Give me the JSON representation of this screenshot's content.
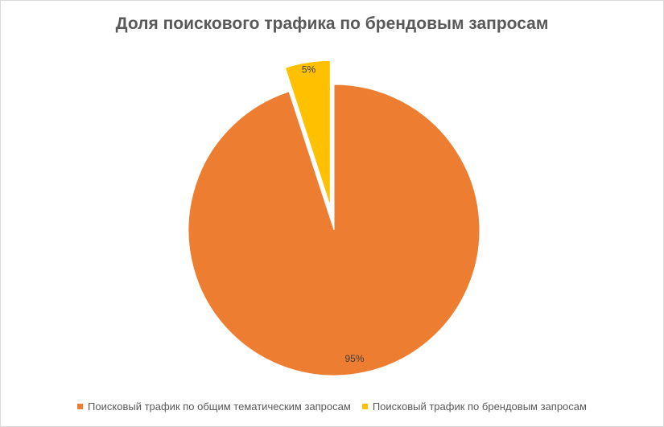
{
  "chart_data": {
    "type": "pie",
    "title": "Доля поискового трафика по брендовым запросам",
    "slices": [
      {
        "label": "Поисковый трафик по общим тематическим запросам",
        "value": 95,
        "data_label": "95%",
        "color": "#ED7D31",
        "exploded": false
      },
      {
        "label": "Поисковый трафик по брендовым запросам",
        "value": 5,
        "data_label": "5%",
        "color": "#FFC000",
        "exploded": true
      }
    ],
    "start_angle_deg": 0,
    "direction": "clockwise",
    "legend_position": "bottom"
  }
}
